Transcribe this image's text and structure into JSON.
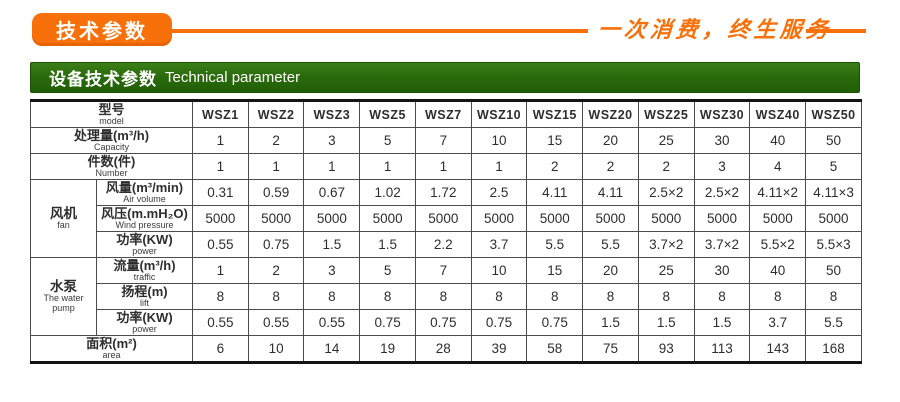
{
  "banner": {
    "badge_label": "技术参数",
    "slogan": "一次消费，终生服务"
  },
  "colors": {
    "accent_orange": "#f8700a",
    "header_green": "#2a6b0c"
  },
  "section": {
    "title_zh": "设备技术参数",
    "title_en": "Technical parameter"
  },
  "table": {
    "header": {
      "label_zh": "型号",
      "label_en": "model",
      "models": [
        "WSZ1",
        "WSZ2",
        "WSZ3",
        "WSZ5",
        "WSZ7",
        "WSZ10",
        "WSZ15",
        "WSZ20",
        "WSZ25",
        "WSZ30",
        "WSZ40",
        "WSZ50"
      ]
    },
    "groups": {
      "fan": {
        "zh": "风机",
        "en": "fan",
        "span": 3
      },
      "pump": {
        "zh": "水泵",
        "en": "The water pump",
        "span": 3
      }
    },
    "rows": [
      {
        "group": null,
        "zh": "处理量(m³/h)",
        "en": "Capacity",
        "values": [
          "1",
          "2",
          "3",
          "5",
          "7",
          "10",
          "15",
          "20",
          "25",
          "30",
          "40",
          "50"
        ]
      },
      {
        "group": null,
        "zh": "件数(件)",
        "en": "Number",
        "values": [
          "1",
          "1",
          "1",
          "1",
          "1",
          "1",
          "2",
          "2",
          "2",
          "3",
          "4",
          "5"
        ]
      },
      {
        "group": "fan",
        "zh": "风量(m³/min)",
        "en": "Air volume",
        "values": [
          "0.31",
          "0.59",
          "0.67",
          "1.02",
          "1.72",
          "2.5",
          "4.11",
          "4.11",
          "2.5×2",
          "2.5×2",
          "4.11×2",
          "4.11×3"
        ]
      },
      {
        "group": "fan",
        "zh": "风压(m.mH₂O)",
        "en": "Wind pressure",
        "values": [
          "5000",
          "5000",
          "5000",
          "5000",
          "5000",
          "5000",
          "5000",
          "5000",
          "5000",
          "5000",
          "5000",
          "5000"
        ]
      },
      {
        "group": "fan",
        "zh": "功率(KW)",
        "en": "power",
        "values": [
          "0.55",
          "0.75",
          "1.5",
          "1.5",
          "2.2",
          "3.7",
          "5.5",
          "5.5",
          "3.7×2",
          "3.7×2",
          "5.5×2",
          "5.5×3"
        ]
      },
      {
        "group": "pump",
        "zh": "流量(m³/h)",
        "en": "traffic",
        "values": [
          "1",
          "2",
          "3",
          "5",
          "7",
          "10",
          "15",
          "20",
          "25",
          "30",
          "40",
          "50"
        ]
      },
      {
        "group": "pump",
        "zh": "扬程(m)",
        "en": "lift",
        "values": [
          "8",
          "8",
          "8",
          "8",
          "8",
          "8",
          "8",
          "8",
          "8",
          "8",
          "8",
          "8"
        ]
      },
      {
        "group": "pump",
        "zh": "功率(KW)",
        "en": "power",
        "values": [
          "0.55",
          "0.55",
          "0.55",
          "0.75",
          "0.75",
          "0.75",
          "0.75",
          "1.5",
          "1.5",
          "1.5",
          "3.7",
          "5.5"
        ]
      },
      {
        "group": null,
        "zh": "面积(m²)",
        "en": "area",
        "values": [
          "6",
          "10",
          "14",
          "19",
          "28",
          "39",
          "58",
          "75",
          "93",
          "113",
          "143",
          "168"
        ]
      }
    ]
  }
}
